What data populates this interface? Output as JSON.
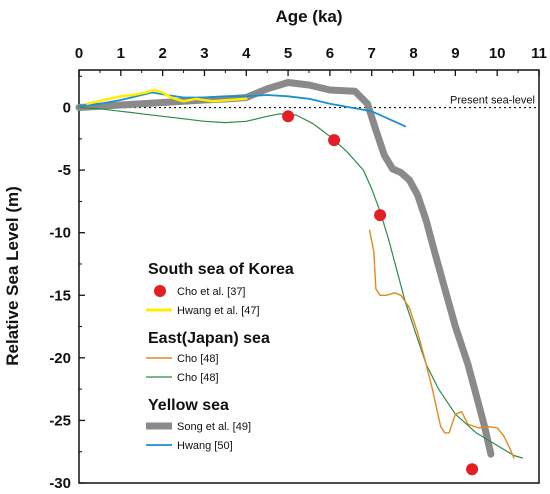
{
  "chart_data": {
    "type": "line",
    "xlabel": "Age (ka)",
    "ylabel": "Relative Sea Level (m)",
    "xlim": [
      0,
      11
    ],
    "ylim": [
      -30,
      3
    ],
    "x_ticks": [
      "0",
      "1",
      "2",
      "3",
      "4",
      "5",
      "6",
      "7",
      "8",
      "9",
      "10",
      "11"
    ],
    "y_ticks": [
      "0",
      "-5",
      "-10",
      "-15",
      "-20",
      "-25",
      "-30"
    ],
    "x_axis_position": "top",
    "grid": false,
    "reference_line": {
      "label": "Present sea-level",
      "y": 0,
      "style": "dotted"
    },
    "legend_groups": [
      {
        "title": "South sea of Korea",
        "entries": [
          {
            "name": "Cho et al. [37]",
            "series": 0
          },
          {
            "name": "Hwang et al. [47]",
            "series": 1
          }
        ]
      },
      {
        "title": "East(Japan) sea",
        "entries": [
          {
            "name": "Cho [48]",
            "series": 2
          },
          {
            "name": "Cho [48]",
            "series": 3
          }
        ]
      },
      {
        "title": "Yellow sea",
        "entries": [
          {
            "name": "Song et al. [49]",
            "series": 4
          },
          {
            "name": "Hwang [50]",
            "series": 5
          }
        ]
      }
    ],
    "series": [
      {
        "name": "Cho et al. [37]",
        "kind": "scatter",
        "color": "#e31e24",
        "points": [
          [
            5.0,
            -0.7
          ],
          [
            6.1,
            -2.6
          ],
          [
            7.2,
            -8.6
          ],
          [
            9.4,
            -28.9
          ]
        ]
      },
      {
        "name": "Hwang et al. [47]",
        "kind": "line",
        "color": "#ffee00",
        "width": 2.5,
        "points": [
          [
            0.2,
            0.3
          ],
          [
            0.6,
            0.6
          ],
          [
            1.0,
            0.9
          ],
          [
            1.3,
            1.0
          ],
          [
            1.6,
            1.2
          ],
          [
            1.8,
            1.4
          ],
          [
            2.0,
            1.2
          ],
          [
            2.2,
            0.8
          ],
          [
            2.5,
            0.5
          ],
          [
            2.8,
            0.7
          ],
          [
            3.2,
            0.5
          ],
          [
            3.6,
            0.6
          ],
          [
            4.0,
            0.7
          ]
        ]
      },
      {
        "name": "Cho [48]",
        "kind": "line",
        "color": "#e08a1e",
        "width": 1.4,
        "points": [
          [
            6.95,
            -9.8
          ],
          [
            7.05,
            -11.5
          ],
          [
            7.1,
            -14.5
          ],
          [
            7.2,
            -15.0
          ],
          [
            7.35,
            -15.0
          ],
          [
            7.55,
            -14.8
          ],
          [
            7.7,
            -15.0
          ],
          [
            7.9,
            -16.0
          ],
          [
            8.1,
            -18.0
          ],
          [
            8.3,
            -20.5
          ],
          [
            8.45,
            -22.5
          ],
          [
            8.55,
            -24.0
          ],
          [
            8.65,
            -25.5
          ],
          [
            8.75,
            -26.0
          ],
          [
            8.85,
            -26.0
          ],
          [
            9.0,
            -24.5
          ],
          [
            9.15,
            -24.3
          ],
          [
            9.3,
            -25.3
          ],
          [
            9.55,
            -25.6
          ],
          [
            9.8,
            -25.5
          ],
          [
            10.0,
            -25.6
          ],
          [
            10.15,
            -26.2
          ],
          [
            10.3,
            -27.2
          ],
          [
            10.4,
            -28.0
          ]
        ]
      },
      {
        "name": "Cho [48]",
        "kind": "line",
        "color": "#2e8b47",
        "width": 1.2,
        "points": [
          [
            0.0,
            0.0
          ],
          [
            0.5,
            -0.1
          ],
          [
            1.0,
            -0.3
          ],
          [
            1.5,
            -0.5
          ],
          [
            2.0,
            -0.7
          ],
          [
            2.5,
            -0.9
          ],
          [
            3.0,
            -1.1
          ],
          [
            3.5,
            -1.2
          ],
          [
            4.0,
            -1.1
          ],
          [
            4.5,
            -0.7
          ],
          [
            4.8,
            -0.5
          ],
          [
            5.2,
            -0.6
          ],
          [
            5.6,
            -1.3
          ],
          [
            6.0,
            -2.3
          ],
          [
            6.4,
            -3.5
          ],
          [
            6.8,
            -5.0
          ],
          [
            7.0,
            -6.5
          ],
          [
            7.2,
            -8.3
          ],
          [
            7.4,
            -10.5
          ],
          [
            7.6,
            -13.0
          ],
          [
            7.8,
            -15.5
          ],
          [
            8.0,
            -17.5
          ],
          [
            8.3,
            -20.5
          ],
          [
            8.6,
            -22.5
          ],
          [
            9.0,
            -24.5
          ],
          [
            9.5,
            -26.0
          ],
          [
            10.0,
            -27.0
          ],
          [
            10.4,
            -27.8
          ],
          [
            10.6,
            -28.0
          ]
        ]
      },
      {
        "name": "Song et al. [49]",
        "kind": "line",
        "color": "#8a8a8a",
        "width": 7,
        "points": [
          [
            0.0,
            0.0
          ],
          [
            1.0,
            0.2
          ],
          [
            2.0,
            0.4
          ],
          [
            3.0,
            0.6
          ],
          [
            3.6,
            0.7
          ],
          [
            4.0,
            0.8
          ],
          [
            4.5,
            1.5
          ],
          [
            5.0,
            2.0
          ],
          [
            5.5,
            1.8
          ],
          [
            6.0,
            1.4
          ],
          [
            6.6,
            1.3
          ],
          [
            6.9,
            0.3
          ],
          [
            7.1,
            -1.8
          ],
          [
            7.3,
            -3.8
          ],
          [
            7.5,
            -4.9
          ],
          [
            7.7,
            -5.2
          ],
          [
            7.9,
            -5.8
          ],
          [
            8.1,
            -7.0
          ],
          [
            8.3,
            -9.0
          ],
          [
            8.5,
            -11.5
          ],
          [
            8.75,
            -14.5
          ],
          [
            9.0,
            -17.5
          ],
          [
            9.3,
            -20.5
          ],
          [
            9.5,
            -23.0
          ],
          [
            9.7,
            -25.5
          ],
          [
            9.85,
            -27.7
          ]
        ]
      },
      {
        "name": "Hwang [50]",
        "kind": "line",
        "color": "#1b8fd0",
        "width": 1.8,
        "points": [
          [
            0.0,
            0.1
          ],
          [
            0.5,
            0.3
          ],
          [
            1.0,
            0.6
          ],
          [
            1.5,
            1.0
          ],
          [
            1.75,
            1.2
          ],
          [
            2.1,
            1.0
          ],
          [
            2.5,
            0.8
          ],
          [
            3.0,
            0.8
          ],
          [
            3.5,
            0.9
          ],
          [
            4.0,
            0.9
          ],
          [
            4.5,
            1.0
          ],
          [
            5.0,
            0.9
          ],
          [
            5.5,
            0.7
          ],
          [
            6.0,
            0.3
          ],
          [
            6.5,
            0.0
          ],
          [
            7.0,
            -0.3
          ],
          [
            7.4,
            -0.9
          ],
          [
            7.8,
            -1.5
          ]
        ]
      }
    ]
  }
}
